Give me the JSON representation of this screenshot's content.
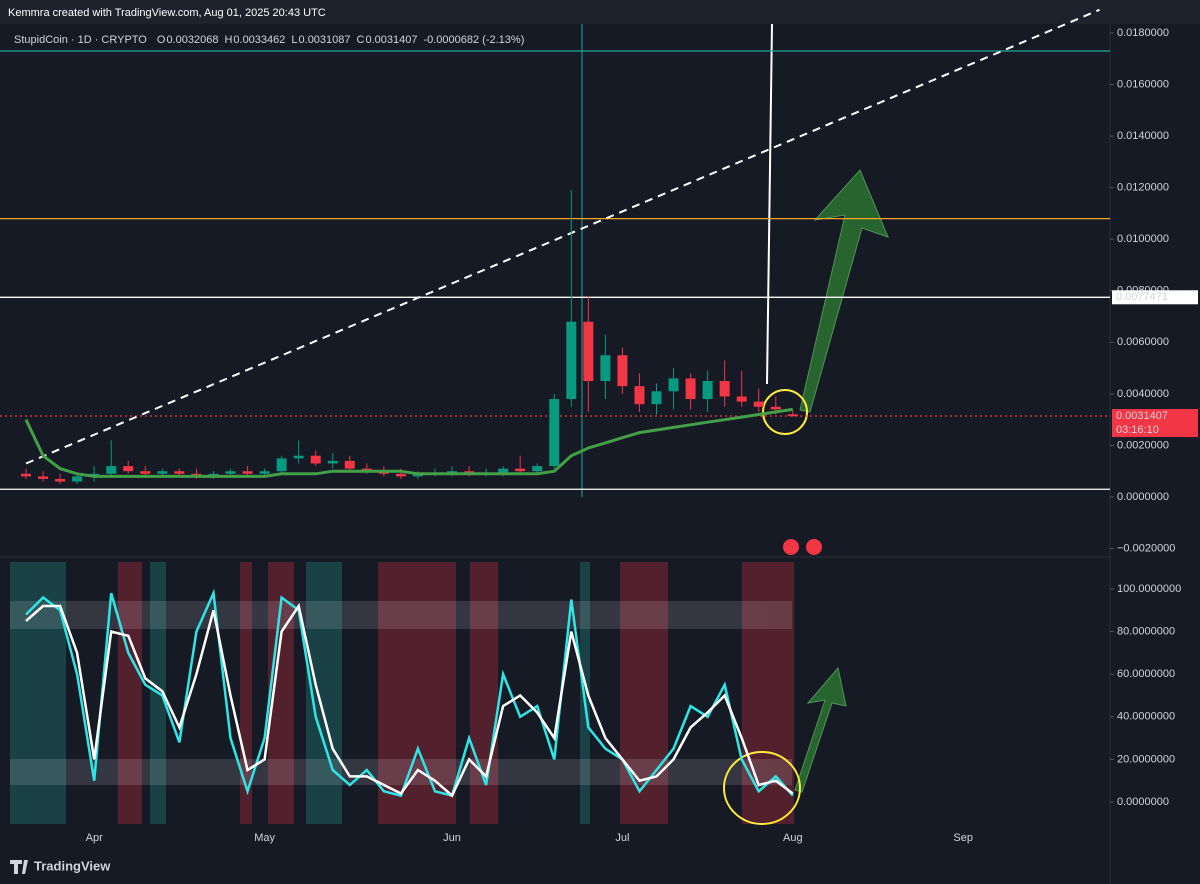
{
  "header": {
    "credit": "Kemmra created with TradingView.com, Aug 01, 2025 20:43 UTC",
    "symbol": "StupidCoin · 1D · CRYPTO",
    "ohlc": [
      {
        "label": "O",
        "value": "0.0032068"
      },
      {
        "label": "H",
        "value": "0.0033462"
      },
      {
        "label": "L",
        "value": "0.0031087"
      },
      {
        "label": "C",
        "value": "0.0031407"
      }
    ],
    "change": "-0.0000682 (-2.13%)"
  },
  "footer": {
    "brand": "TradingView"
  },
  "chart_data": [
    {
      "type": "candlestick",
      "categories": [
        null,
        null,
        null,
        null,
        "Apr",
        null,
        null,
        null,
        null,
        null,
        null,
        null,
        null,
        null,
        "May",
        null,
        null,
        null,
        null,
        null,
        null,
        null,
        null,
        null,
        null,
        "Jun",
        null,
        null,
        null,
        null,
        null,
        null,
        null,
        null,
        null,
        "Jul",
        null,
        null,
        null,
        null,
        null,
        null,
        null,
        null,
        null,
        "Aug",
        null,
        null,
        null,
        null,
        null,
        null,
        null,
        null,
        null,
        "Sep",
        null,
        null,
        null,
        null,
        null,
        null,
        null,
        null
      ],
      "open": [
        0.0009,
        0.0008,
        0.0007,
        0.0006,
        0.0008,
        0.0009,
        0.0012,
        0.001,
        0.0009,
        0.001,
        0.0009,
        0.0008,
        0.0009,
        0.001,
        0.0009,
        0.001,
        0.0015,
        0.0016,
        0.0013,
        0.0014,
        0.0011,
        0.001,
        0.0009,
        0.0008,
        0.0009,
        0.0009,
        0.001,
        0.0009,
        0.0009,
        0.0011,
        0.001,
        0.0012,
        0.0038,
        0.0068,
        0.0045,
        0.0055,
        0.0043,
        0.0036,
        0.0041,
        0.0046,
        0.0038,
        0.0045,
        0.0039,
        0.0037,
        0.0035,
        0.0032068,
        null,
        null,
        null,
        null,
        null,
        null,
        null,
        null,
        null,
        null,
        null,
        null,
        null,
        null,
        null,
        null,
        null,
        null
      ],
      "high": [
        0.0011,
        0.001,
        0.0009,
        0.0009,
        0.0012,
        0.0022,
        0.0014,
        0.0012,
        0.0011,
        0.0011,
        0.0011,
        0.001,
        0.0011,
        0.0012,
        0.0011,
        0.0016,
        0.0022,
        0.0018,
        0.0017,
        0.0016,
        0.0013,
        0.0012,
        0.0011,
        0.001,
        0.0011,
        0.0012,
        0.0012,
        0.0011,
        0.0012,
        0.0016,
        0.0013,
        0.004,
        0.0119,
        0.0078,
        0.0063,
        0.0058,
        0.0048,
        0.0044,
        0.005,
        0.0048,
        0.0049,
        0.0053,
        0.0049,
        0.0042,
        0.0039,
        0.0033462,
        null,
        null,
        null,
        null,
        null,
        null,
        null,
        null,
        null,
        null,
        null,
        null,
        null,
        null,
        null,
        null,
        null,
        null
      ],
      "low": [
        0.0007,
        0.0006,
        0.0005,
        0.0005,
        0.0006,
        0.0008,
        0.0009,
        0.0008,
        0.0008,
        0.0008,
        0.0007,
        0.0007,
        0.0008,
        0.0008,
        0.0008,
        0.0009,
        0.0013,
        0.0012,
        0.0011,
        0.001,
        0.0009,
        0.0008,
        0.0007,
        0.0007,
        0.0008,
        0.0008,
        0.0008,
        0.0008,
        0.0008,
        0.0009,
        0.0009,
        0.0011,
        0.0035,
        0.0033,
        0.0038,
        0.004,
        0.0033,
        0.0032,
        0.0034,
        0.0034,
        0.0033,
        0.0035,
        0.0035,
        0.0033,
        0.0032,
        0.0031087,
        null,
        null,
        null,
        null,
        null,
        null,
        null,
        null,
        null,
        null,
        null,
        null,
        null,
        null,
        null,
        null,
        null,
        null
      ],
      "close": [
        0.0008,
        0.0007,
        0.0006,
        0.0008,
        0.0009,
        0.0012,
        0.001,
        0.0009,
        0.001,
        0.0009,
        0.0008,
        0.0009,
        0.001,
        0.0009,
        0.001,
        0.0015,
        0.0016,
        0.0013,
        0.0014,
        0.0011,
        0.001,
        0.0009,
        0.0008,
        0.0009,
        0.0009,
        0.001,
        0.0009,
        0.0009,
        0.0011,
        0.001,
        0.0012,
        0.0038,
        0.0068,
        0.0045,
        0.0055,
        0.0043,
        0.0036,
        0.0041,
        0.0046,
        0.0038,
        0.0045,
        0.0039,
        0.0037,
        0.0035,
        0.0034,
        0.0031407,
        null,
        null,
        null,
        null,
        null,
        null,
        null,
        null,
        null,
        null,
        null,
        null,
        null,
        null,
        null,
        null,
        null,
        null
      ],
      "up_color": "#089981",
      "down_color": "#f23645",
      "moving_average": {
        "color": "#43a047",
        "values": [
          0.003,
          0.0016,
          0.0011,
          0.0009,
          0.0008,
          0.0008,
          0.0008,
          0.0008,
          0.0008,
          0.0008,
          0.0008,
          0.0008,
          0.0008,
          0.0008,
          0.0008,
          0.0009,
          0.0009,
          0.0009,
          0.001,
          0.001,
          0.001,
          0.001,
          0.001,
          0.0009,
          0.0009,
          0.0009,
          0.0009,
          0.0009,
          0.0009,
          0.0009,
          0.0009,
          0.001,
          0.0016,
          0.0019,
          0.0021,
          0.0023,
          0.0025,
          0.0026,
          0.0027,
          0.0028,
          0.0029,
          0.003,
          0.0031,
          0.0032,
          0.0033,
          0.0034,
          null,
          null,
          null,
          null,
          null,
          null,
          null,
          null,
          null,
          null,
          null,
          null,
          null,
          null,
          null,
          null,
          null,
          null
        ]
      },
      "trendline": {
        "start": 0.0013,
        "end": 0.0189,
        "color": "#ffffff"
      },
      "hlines": [
        {
          "value": 0.0173,
          "color": "#26a69a"
        },
        {
          "value": 0.0108,
          "color": "#f5a623"
        },
        {
          "value": 0.0077471,
          "color": "#ffffff",
          "label": "0.0077471"
        },
        {
          "value": 0.0031407,
          "color": "#f23645",
          "label": "0.0031407",
          "countdown": "03:16:10"
        },
        {
          "value": 0.0003,
          "color": "#ffffff"
        }
      ],
      "ylim": [
        -0.00225,
        0.01831
      ],
      "yticks": [
        {
          "value": -0.002,
          "label": "−0.0020000"
        },
        {
          "value": 0,
          "label": "0.0000000"
        },
        {
          "value": 0.002,
          "label": "0.0020000"
        },
        {
          "value": 0.004,
          "label": "0.0040000"
        },
        {
          "value": 0.006,
          "label": "0.0060000"
        },
        {
          "value": 0.008,
          "label": "0.0080000"
        },
        {
          "value": 0.01,
          "label": "0.0100000"
        },
        {
          "value": 0.012,
          "label": "0.0120000"
        },
        {
          "value": 0.014,
          "label": "0.0140000"
        },
        {
          "value": 0.016,
          "label": "0.0160000"
        },
        {
          "value": 0.018,
          "label": "0.0180000"
        }
      ]
    },
    {
      "type": "line",
      "series": [
        {
          "color": "#2ee6e6",
          "values": [
            88,
            96,
            90,
            60,
            10,
            98,
            70,
            55,
            50,
            28,
            80,
            98,
            30,
            5,
            30,
            96,
            90,
            40,
            15,
            8,
            15,
            5,
            3,
            25,
            5,
            3,
            30,
            8,
            60,
            40,
            45,
            20,
            95,
            35,
            25,
            20,
            5,
            15,
            25,
            45,
            40,
            55,
            20,
            5,
            12,
            3,
            null,
            null,
            null,
            null,
            null,
            null,
            null,
            null,
            null,
            null,
            null,
            null,
            null,
            null,
            null,
            null,
            null,
            null
          ]
        },
        {
          "color": "#ffffff",
          "values": [
            85,
            92,
            92,
            70,
            20,
            80,
            78,
            58,
            52,
            35,
            60,
            90,
            50,
            15,
            20,
            80,
            92,
            55,
            25,
            12,
            12,
            8,
            4,
            15,
            10,
            3,
            20,
            12,
            45,
            50,
            42,
            30,
            80,
            50,
            30,
            20,
            10,
            12,
            20,
            35,
            42,
            50,
            30,
            8,
            10,
            4,
            null,
            null,
            null,
            null,
            null,
            null,
            null,
            null,
            null,
            null,
            null,
            null,
            null,
            null,
            null,
            null,
            null,
            null
          ]
        }
      ],
      "ylim": [
        -10.8,
        113.6
      ],
      "yticks": [
        {
          "value": 0,
          "label": "0.0000000"
        },
        {
          "value": 20,
          "label": "20.0000000"
        },
        {
          "value": 40,
          "label": "40.0000000"
        },
        {
          "value": 60,
          "label": "60.0000000"
        },
        {
          "value": 80,
          "label": "80.0000000"
        },
        {
          "value": 100,
          "label": "100.0000000"
        }
      ]
    }
  ]
}
